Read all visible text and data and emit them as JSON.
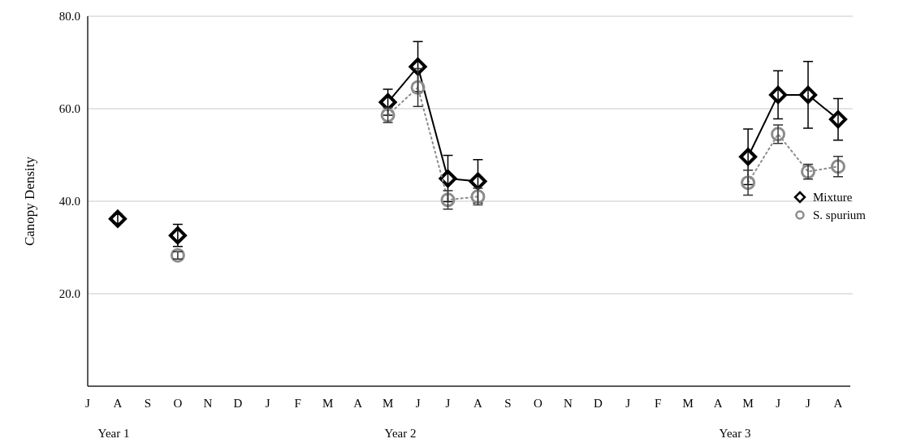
{
  "chart_data": {
    "type": "line",
    "ylabel": "Canopy Density",
    "categories": [
      "J",
      "A",
      "S",
      "O",
      "N",
      "D",
      "J",
      "F",
      "M",
      "A",
      "M",
      "J",
      "J",
      "A",
      "S",
      "O",
      "N",
      "D",
      "J",
      "F",
      "M",
      "A",
      "M",
      "J",
      "J",
      "A"
    ],
    "series": [
      {
        "name": "Mixture",
        "color": "#000000",
        "marker": "diamond",
        "line_style": "solid",
        "values": [
          null,
          36.2,
          null,
          32.6,
          null,
          null,
          null,
          null,
          null,
          null,
          61.4,
          69.1,
          44.9,
          44.3,
          null,
          null,
          null,
          null,
          null,
          null,
          null,
          null,
          49.6,
          63.0,
          63.0,
          57.7
        ],
        "errors": [
          null,
          1,
          null,
          2.4,
          null,
          null,
          null,
          null,
          null,
          null,
          2.8,
          5.4,
          5,
          4.7,
          null,
          null,
          null,
          null,
          null,
          null,
          null,
          null,
          6,
          5.2,
          7.2,
          4.5
        ]
      },
      {
        "name": "S. spurium",
        "color": "#8c8c8c",
        "marker": "circle",
        "line_style": "dotted",
        "values": [
          null,
          null,
          null,
          28.3,
          null,
          null,
          null,
          null,
          null,
          null,
          58.6,
          64.6,
          40.3,
          41.0,
          null,
          null,
          null,
          null,
          null,
          null,
          null,
          null,
          44.0,
          54.5,
          46.4,
          47.5
        ],
        "errors": [
          null,
          null,
          null,
          0.8,
          null,
          null,
          null,
          null,
          null,
          null,
          1.6,
          4.1,
          2,
          1.8,
          null,
          null,
          null,
          null,
          null,
          null,
          null,
          null,
          2.7,
          2,
          1.6,
          2.2
        ]
      }
    ],
    "ylim": [
      0,
      80
    ],
    "yticks": [
      {
        "value": 20,
        "label": "20.0"
      },
      {
        "value": 40,
        "label": "40.0"
      },
      {
        "value": 60,
        "label": "60.0"
      },
      {
        "value": 80,
        "label": "80.0"
      }
    ],
    "grid": "y",
    "legend": "right",
    "annotations": [
      "Year 1",
      "Year 2",
      "Year 3"
    ]
  }
}
